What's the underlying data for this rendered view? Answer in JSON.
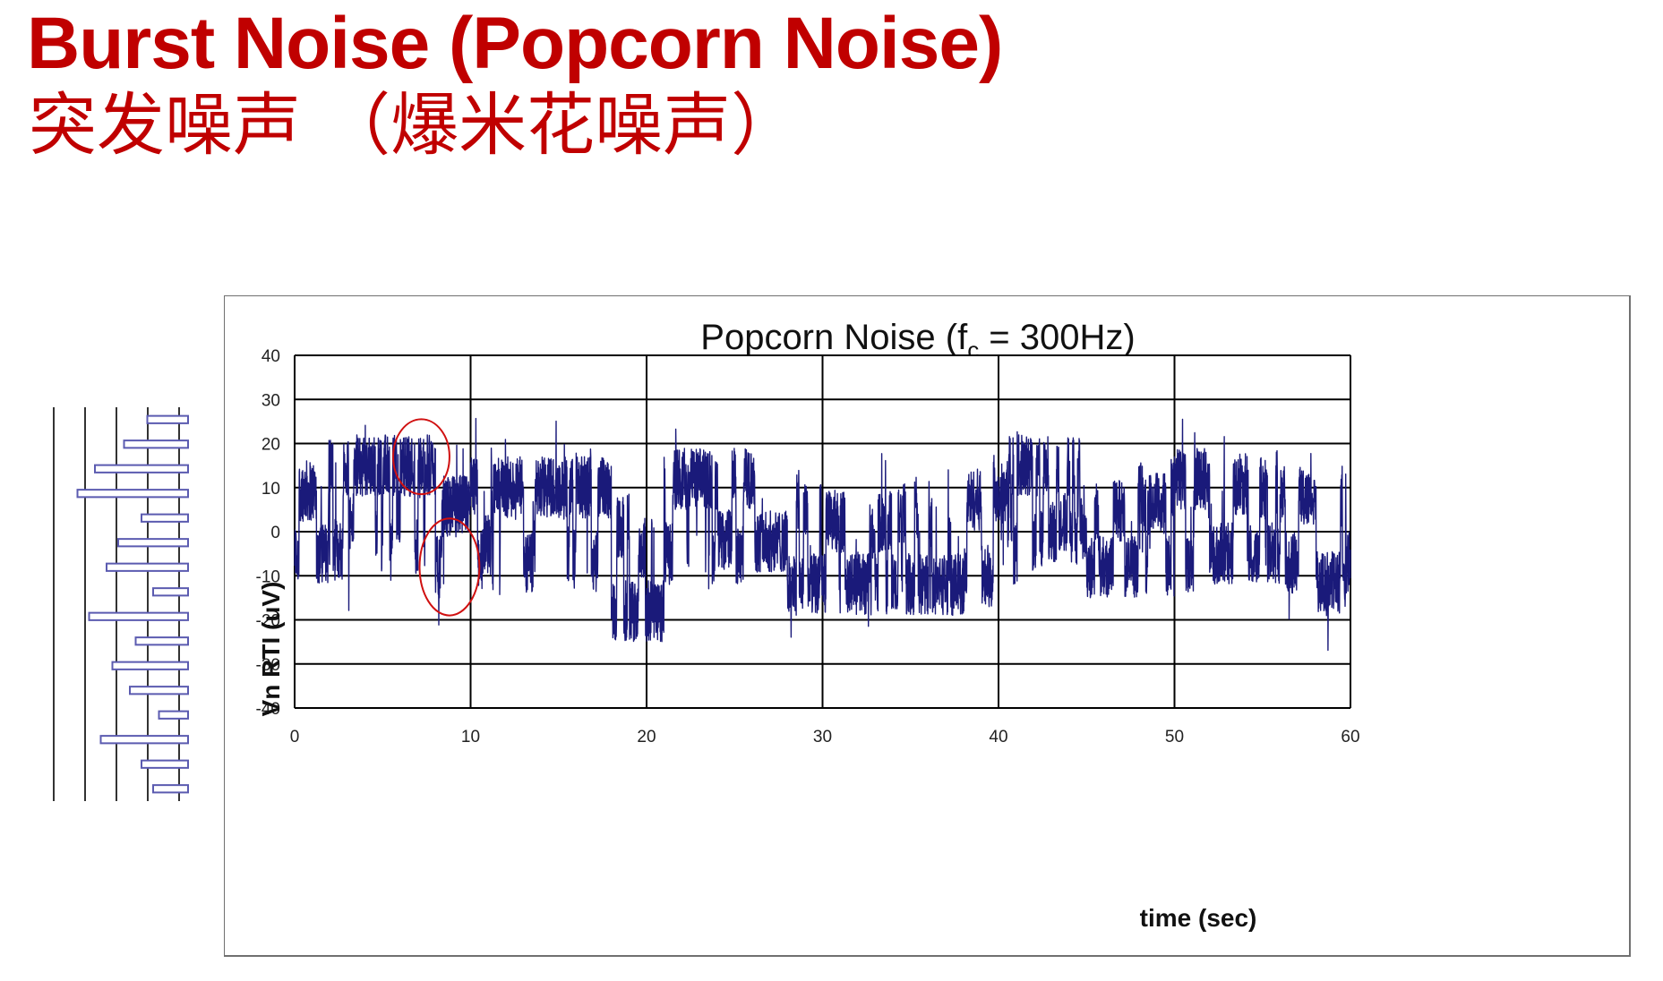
{
  "slide": {
    "title": "Burst Noise (Popcorn Noise)",
    "subtitle": "突发噪声 （爆米花噪声）"
  },
  "colors": {
    "title": "#c00000",
    "series": "#1a1a7a",
    "annotation": "#d01010",
    "grid": "#000000",
    "side_bars": "#5b5bb0"
  },
  "chart_data": {
    "type": "line",
    "title_main": "Popcorn Noise (f",
    "title_sub": "c",
    "title_tail": " = 300Hz)",
    "xlabel": "time (sec)",
    "ylabel": "Vn RTI (uV)",
    "xlim": [
      0,
      60
    ],
    "ylim": [
      -40,
      40
    ],
    "xticks": [
      0,
      10,
      20,
      30,
      40,
      50,
      60
    ],
    "yticks": [
      40,
      30,
      20,
      10,
      0,
      -10,
      -20,
      -30,
      -40
    ],
    "grid": true,
    "legend": "none",
    "series": [
      {
        "style": "burst-noise",
        "segments": [
          {
            "x_start": 0,
            "x_end": 2.0,
            "level": -5
          },
          {
            "x_start": 2.0,
            "x_end": 8.0,
            "level": 15
          },
          {
            "x_start": 8.0,
            "x_end": 10.0,
            "level": -8
          },
          {
            "x_start": 10.0,
            "x_end": 18.0,
            "level": 10
          },
          {
            "x_start": 18.0,
            "x_end": 21.0,
            "level": -18
          },
          {
            "x_start": 21.0,
            "x_end": 28.0,
            "level": 12
          },
          {
            "x_start": 28.0,
            "x_end": 38.0,
            "level": -12
          },
          {
            "x_start": 38.0,
            "x_end": 40.5,
            "level": -10
          },
          {
            "x_start": 40.5,
            "x_end": 45.0,
            "level": 15
          },
          {
            "x_start": 45.0,
            "x_end": 50.0,
            "level": -8
          },
          {
            "x_start": 50.0,
            "x_end": 52.0,
            "level": 12
          },
          {
            "x_start": 52.0,
            "x_end": 56.0,
            "level": -5
          },
          {
            "x_start": 56.0,
            "x_end": 60.0,
            "level": 8
          }
        ]
      }
    ],
    "annotations": [
      {
        "shape": "ellipse",
        "x_center": 7.2,
        "y_center": 17,
        "x_radius": 1.6,
        "y_radius": 8.5
      },
      {
        "shape": "ellipse",
        "x_center": 8.8,
        "y_center": -8,
        "x_radius": 1.7,
        "y_radius": 11
      }
    ]
  },
  "side_figure": {
    "description_icon": "partial-bar-chart-icon",
    "bars": [
      0.35,
      0.55,
      0.8,
      0.95,
      0.4,
      0.6,
      0.7,
      0.3,
      0.85,
      0.45,
      0.65,
      0.5,
      0.25,
      0.75,
      0.4,
      0.3
    ]
  }
}
